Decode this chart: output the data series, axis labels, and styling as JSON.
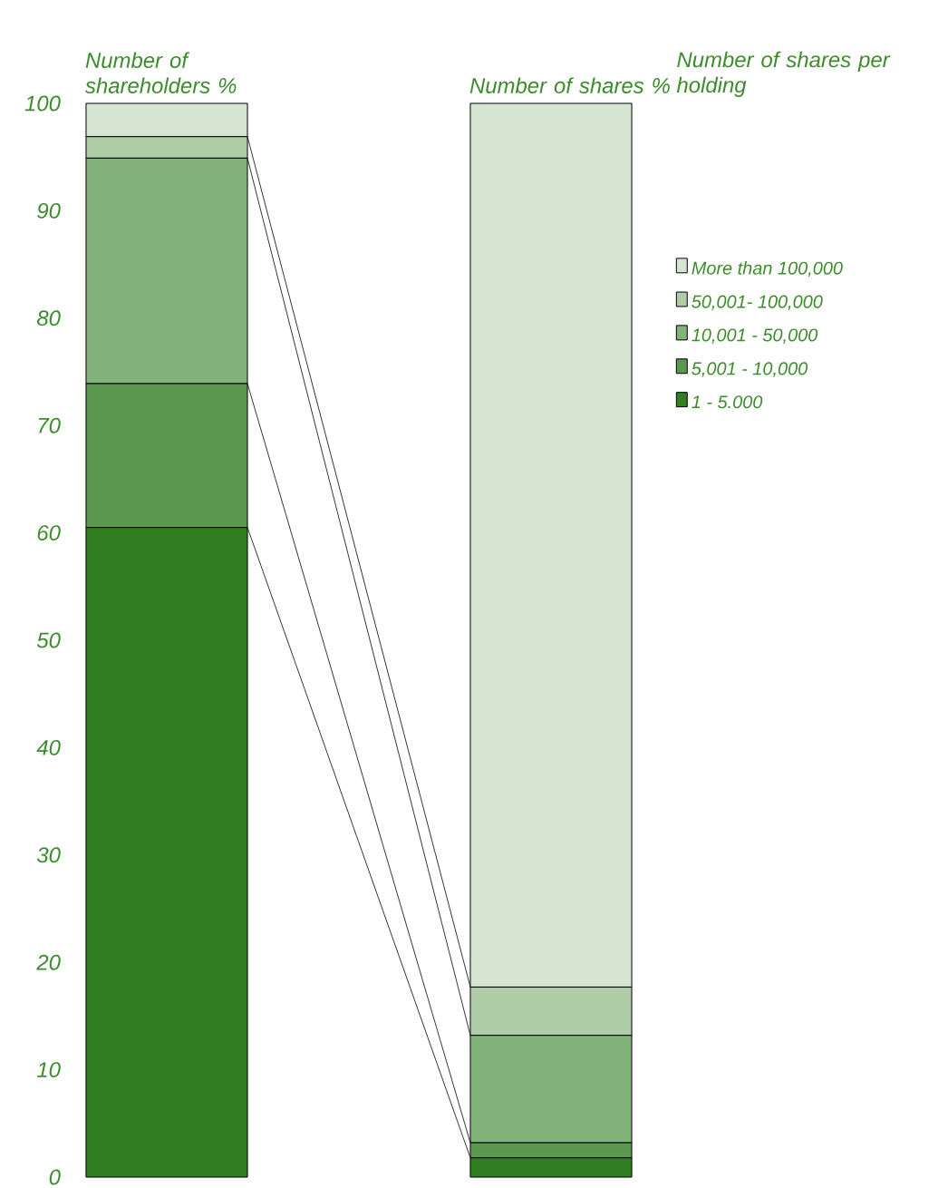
{
  "chart_data": {
    "type": "bar",
    "stacked": true,
    "legend_title": "Number of shares per holding",
    "categories": [
      "Number of shareholders %",
      "Number of shares %"
    ],
    "series": [
      {
        "name": "1 - 5.000",
        "color": "#317f20",
        "values": [
          60.5,
          1.8
        ]
      },
      {
        "name": "5,001 - 10,000",
        "color": "#5a974f",
        "values": [
          13.4,
          1.4
        ]
      },
      {
        "name": "10,001 - 50,000",
        "color": "#82b37a",
        "values": [
          21.0,
          10.0
        ]
      },
      {
        "name": "50,001- 100,000",
        "color": "#aecca6",
        "values": [
          2.0,
          4.5
        ]
      },
      {
        "name": "More than 100,000",
        "color": "#d5e5d2",
        "values": [
          3.1,
          82.3
        ]
      }
    ],
    "ylim": [
      0,
      100
    ],
    "yticks": [
      0,
      10,
      20,
      30,
      40,
      50,
      60,
      70,
      80,
      90,
      100
    ],
    "legend": "right",
    "grid": false
  }
}
